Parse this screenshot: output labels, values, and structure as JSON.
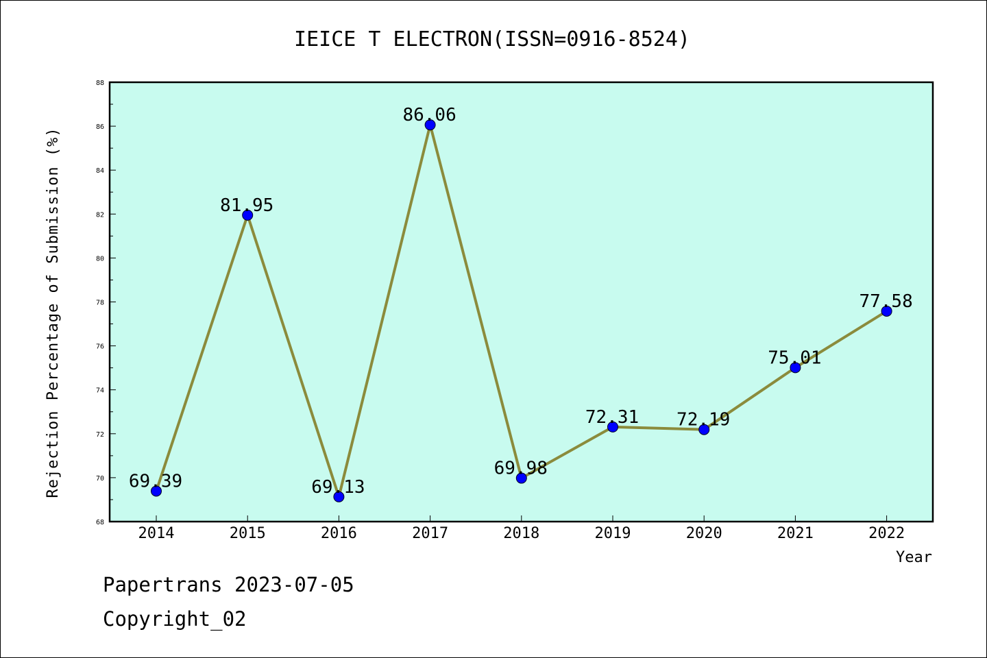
{
  "chart_data": {
    "type": "line",
    "title": "IEICE T ELECTRON(ISSN=0916-8524)",
    "xlabel": "Year",
    "ylabel": "Rejection Percentage of Submission (%)",
    "categories": [
      "2014",
      "2015",
      "2016",
      "2017",
      "2018",
      "2019",
      "2020",
      "2021",
      "2022"
    ],
    "values": [
      69.39,
      81.95,
      69.13,
      86.06,
      69.98,
      72.31,
      72.19,
      75.01,
      77.58
    ],
    "data_labels": [
      "69.39",
      "81.95",
      "69.13",
      "86.06",
      "69.98",
      "72.31",
      "72.19",
      "75.01",
      "77.58"
    ],
    "ylim": [
      68,
      88
    ],
    "yticks": [
      68,
      70,
      72,
      74,
      76,
      78,
      80,
      82,
      84,
      86,
      88
    ],
    "colors": {
      "plot_background": "#c8fbef",
      "line": "#8b8b3c",
      "marker": "#0000ff"
    },
    "grid": false,
    "legend": "none"
  },
  "footer": {
    "line1": "Papertrans 2023-07-05",
    "line2": "Copyright_02"
  }
}
